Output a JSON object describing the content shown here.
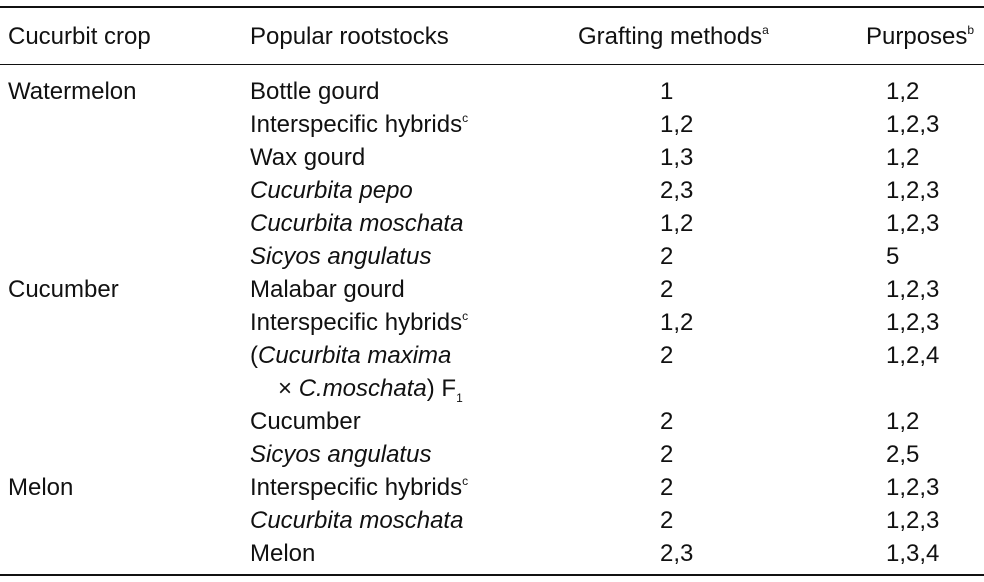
{
  "table": {
    "headers": {
      "crop": "Cucurbit crop",
      "rootstocks": "Popular rootstocks",
      "methods": "Grafting methods",
      "methods_note": "a",
      "purposes": "Purposes",
      "purposes_note": "b"
    },
    "crops": [
      "Watermelon",
      "Cucumber",
      "Melon"
    ],
    "rows": [
      {
        "rootstock": "Bottle gourd",
        "methods": "1",
        "purposes": "1,2"
      },
      {
        "rootstock": "Interspecific hybrids",
        "note": "c",
        "methods": "1,2",
        "purposes": "1,2,3"
      },
      {
        "rootstock": "Wax gourd",
        "methods": "1,3",
        "purposes": "1,2"
      },
      {
        "rootstock": "Cucurbita pepo",
        "methods": "2,3",
        "purposes": "1,2,3"
      },
      {
        "rootstock": "Cucurbita moschata",
        "methods": "1,2",
        "purposes": "1,2,3"
      },
      {
        "rootstock": "Sicyos angulatus",
        "methods": "2",
        "purposes": "5"
      },
      {
        "rootstock": "Malabar gourd",
        "methods": "2",
        "purposes": "1,2,3"
      },
      {
        "rootstock": "Interspecific hybrids",
        "note": "c",
        "methods": "1,2",
        "purposes": "1,2,3"
      },
      {
        "rootstock_line1_open": "(",
        "rootstock_line1_species": "Cucurbita maxima",
        "rootstock_line2_times": "× ",
        "rootstock_line2_species": "C.moschata",
        "rootstock_line2_close": ") F",
        "rootstock_line2_sub": "1",
        "methods": "2",
        "purposes": "1,2,4"
      },
      {
        "rootstock": "Cucumber",
        "methods": "2",
        "purposes": "1,2"
      },
      {
        "rootstock": "Sicyos angulatus",
        "methods": "2",
        "purposes": "2,5"
      },
      {
        "rootstock": "Interspecific hybrids",
        "note": "c",
        "methods": "2",
        "purposes": "1,2,3"
      },
      {
        "rootstock": "Cucurbita moschata",
        "methods": "2",
        "purposes": "1,2,3"
      },
      {
        "rootstock": "Melon",
        "methods": "2,3",
        "purposes": "1,3,4"
      }
    ]
  }
}
